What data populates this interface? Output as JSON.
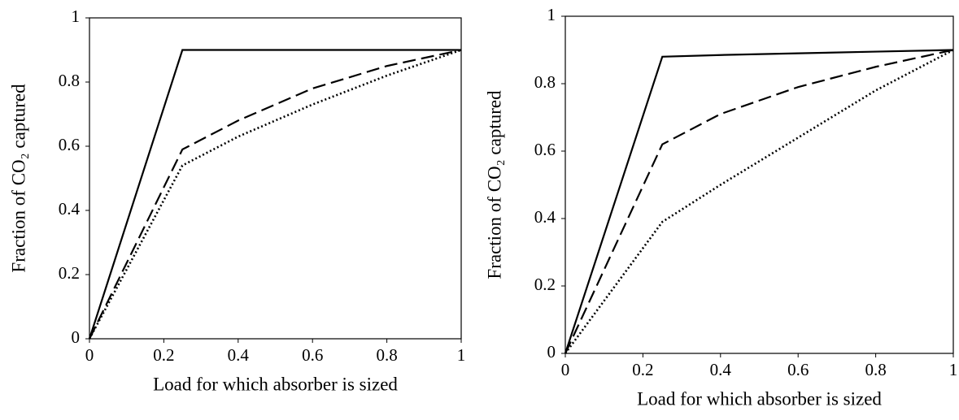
{
  "chart_data": [
    {
      "type": "line",
      "xlabel": "Load for which absorber is sized",
      "ylabel": "Fraction of CO₂ captured",
      "x": [
        0,
        0.25,
        0.4,
        0.6,
        0.8,
        1
      ],
      "series": [
        {
          "color": "#000000",
          "dash": "solid",
          "values": [
            0,
            0.9,
            0.9,
            0.9,
            0.9,
            0.9
          ]
        },
        {
          "color": "#000000",
          "dash": "dashed",
          "values": [
            0,
            0.59,
            0.68,
            0.78,
            0.85,
            0.9
          ]
        },
        {
          "color": "#000000",
          "dash": "dotted",
          "values": [
            0,
            0.54,
            0.63,
            0.73,
            0.82,
            0.9
          ]
        }
      ],
      "xlim": [
        0,
        1
      ],
      "xticks": [
        0,
        0.2,
        0.4,
        0.6,
        0.8,
        1
      ],
      "ylim": [
        0,
        1
      ],
      "yticks": [
        0,
        0.2,
        0.4,
        0.6,
        0.8,
        1
      ]
    },
    {
      "type": "line",
      "xlabel": "Load for which absorber is sized",
      "ylabel": "Fraction of CO₂ captured",
      "x": [
        0,
        0.25,
        0.4,
        0.6,
        0.8,
        1
      ],
      "series": [
        {
          "color": "#000000",
          "dash": "solid",
          "values": [
            0,
            0.88,
            0.885,
            0.89,
            0.895,
            0.9
          ]
        },
        {
          "color": "#000000",
          "dash": "dashed",
          "values": [
            0,
            0.62,
            0.71,
            0.79,
            0.85,
            0.9
          ]
        },
        {
          "color": "#000000",
          "dash": "dotted",
          "values": [
            0,
            0.39,
            0.5,
            0.64,
            0.78,
            0.9
          ]
        }
      ],
      "xlim": [
        0,
        1
      ],
      "xticks": [
        0,
        0.2,
        0.4,
        0.6,
        0.8,
        1
      ],
      "ylim": [
        0,
        1
      ],
      "yticks": [
        0,
        0.2,
        0.4,
        0.6,
        0.8,
        1
      ]
    }
  ]
}
